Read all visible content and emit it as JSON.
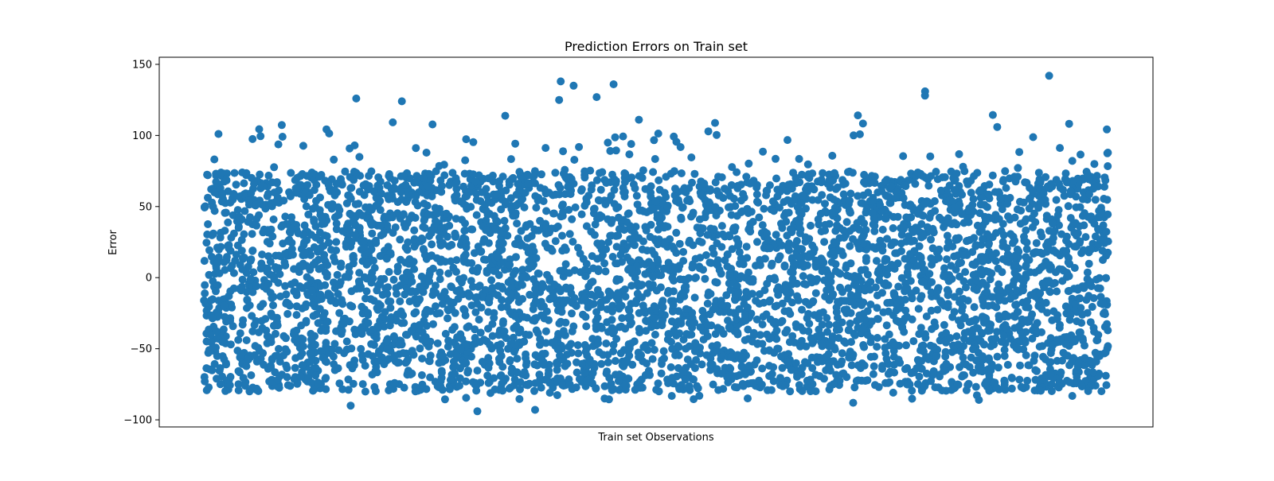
{
  "chart_data": {
    "type": "scatter",
    "title": "Prediction Errors on Train set",
    "xlabel": "Train set Observations",
    "ylabel": "Error",
    "ylim": [
      -105,
      155
    ],
    "yticks": [
      -100,
      -50,
      0,
      50,
      100,
      150
    ],
    "ytick_labels": [
      "−100",
      "−50",
      "0",
      "50",
      "100",
      "150"
    ],
    "xticks_visible": false,
    "grid": false,
    "legend": "none",
    "marker_color": "#1f77b4",
    "n_points": 4700,
    "series": [
      {
        "distribution": "uniform",
        "y_range": [
          -95,
          145
        ],
        "outliers": [
          138,
          135,
          142,
          136,
          131,
          128,
          127,
          126,
          125,
          124,
          -94,
          -93,
          -90,
          -88,
          -86,
          -85
        ]
      }
    ]
  }
}
